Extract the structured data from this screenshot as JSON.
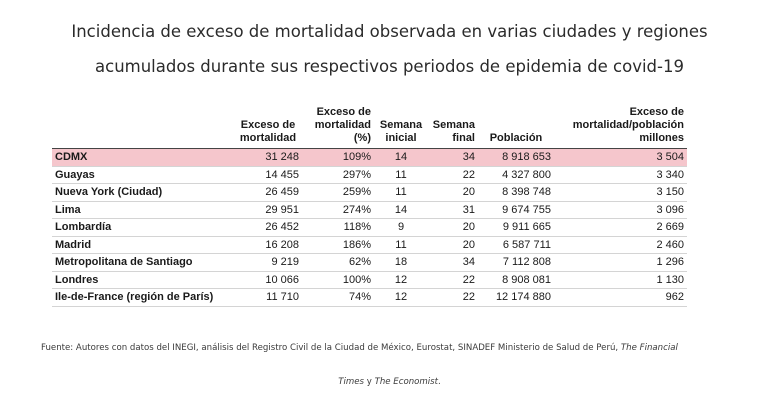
{
  "title": {
    "line1": "Incidencia de exceso de mortalidad observada en varias ciudades y regiones",
    "line2": "acumulados durante sus respectivos periodos de epidemia de covid-19"
  },
  "table": {
    "headers": {
      "region": "",
      "exceso": "Exceso de\nmortalidad",
      "exceso_pct": "Exceso de\nmortalidad\n(%)",
      "sem_ini": "Semana\ninicial",
      "sem_fin": "Semana\nfinal",
      "poblacion": "Población",
      "exceso_pob": "Exceso de\nmortalidad/población\nmillones"
    },
    "rows": [
      {
        "region": "CDMX",
        "exceso": "31 248",
        "exceso_pct": "109%",
        "sem_ini": "14",
        "sem_fin": "34",
        "poblacion": "8 918 653",
        "exceso_pob": "3 504"
      },
      {
        "region": "Guayas",
        "exceso": "14 455",
        "exceso_pct": "297%",
        "sem_ini": "11",
        "sem_fin": "22",
        "poblacion": "4 327 800",
        "exceso_pob": "3 340"
      },
      {
        "region": "Nueva York (Ciudad)",
        "exceso": "26 459",
        "exceso_pct": "259%",
        "sem_ini": "11",
        "sem_fin": "20",
        "poblacion": "8 398 748",
        "exceso_pob": "3 150"
      },
      {
        "region": "Lima",
        "exceso": "29 951",
        "exceso_pct": "274%",
        "sem_ini": "14",
        "sem_fin": "31",
        "poblacion": "9 674 755",
        "exceso_pob": "3 096"
      },
      {
        "region": "Lombardía",
        "exceso": "26 452",
        "exceso_pct": "118%",
        "sem_ini": "9",
        "sem_fin": "20",
        "poblacion": "9 911 665",
        "exceso_pob": "2 669"
      },
      {
        "region": "Madrid",
        "exceso": "16 208",
        "exceso_pct": "186%",
        "sem_ini": "11",
        "sem_fin": "20",
        "poblacion": "6 587 711",
        "exceso_pob": "2 460"
      },
      {
        "region": "Metropolitana de Santiago",
        "exceso": "9 219",
        "exceso_pct": "62%",
        "sem_ini": "18",
        "sem_fin": "34",
        "poblacion": "7 112 808",
        "exceso_pob": "1 296"
      },
      {
        "region": "Londres",
        "exceso": "10 066",
        "exceso_pct": "100%",
        "sem_ini": "12",
        "sem_fin": "22",
        "poblacion": "8 908 081",
        "exceso_pob": "1 130"
      },
      {
        "region": "Ile-de-France (región de París)",
        "exceso": "11 710",
        "exceso_pct": "74%",
        "sem_ini": "12",
        "sem_fin": "22",
        "poblacion": "12 174 880",
        "exceso_pob": "962"
      }
    ],
    "highlight_color": "#f5c6cc"
  },
  "source": {
    "text": "Fuente: Autores con datos del INEGI, análisis del Registro Civil de la Ciudad de México, Eurostat, SINADEF Ministerio de Salud de Perú, ",
    "italic1": "The Financial",
    "line2_italic1": "Times",
    "line2_mid": " y ",
    "line2_italic2": "The Economist",
    "line2_end": "."
  }
}
